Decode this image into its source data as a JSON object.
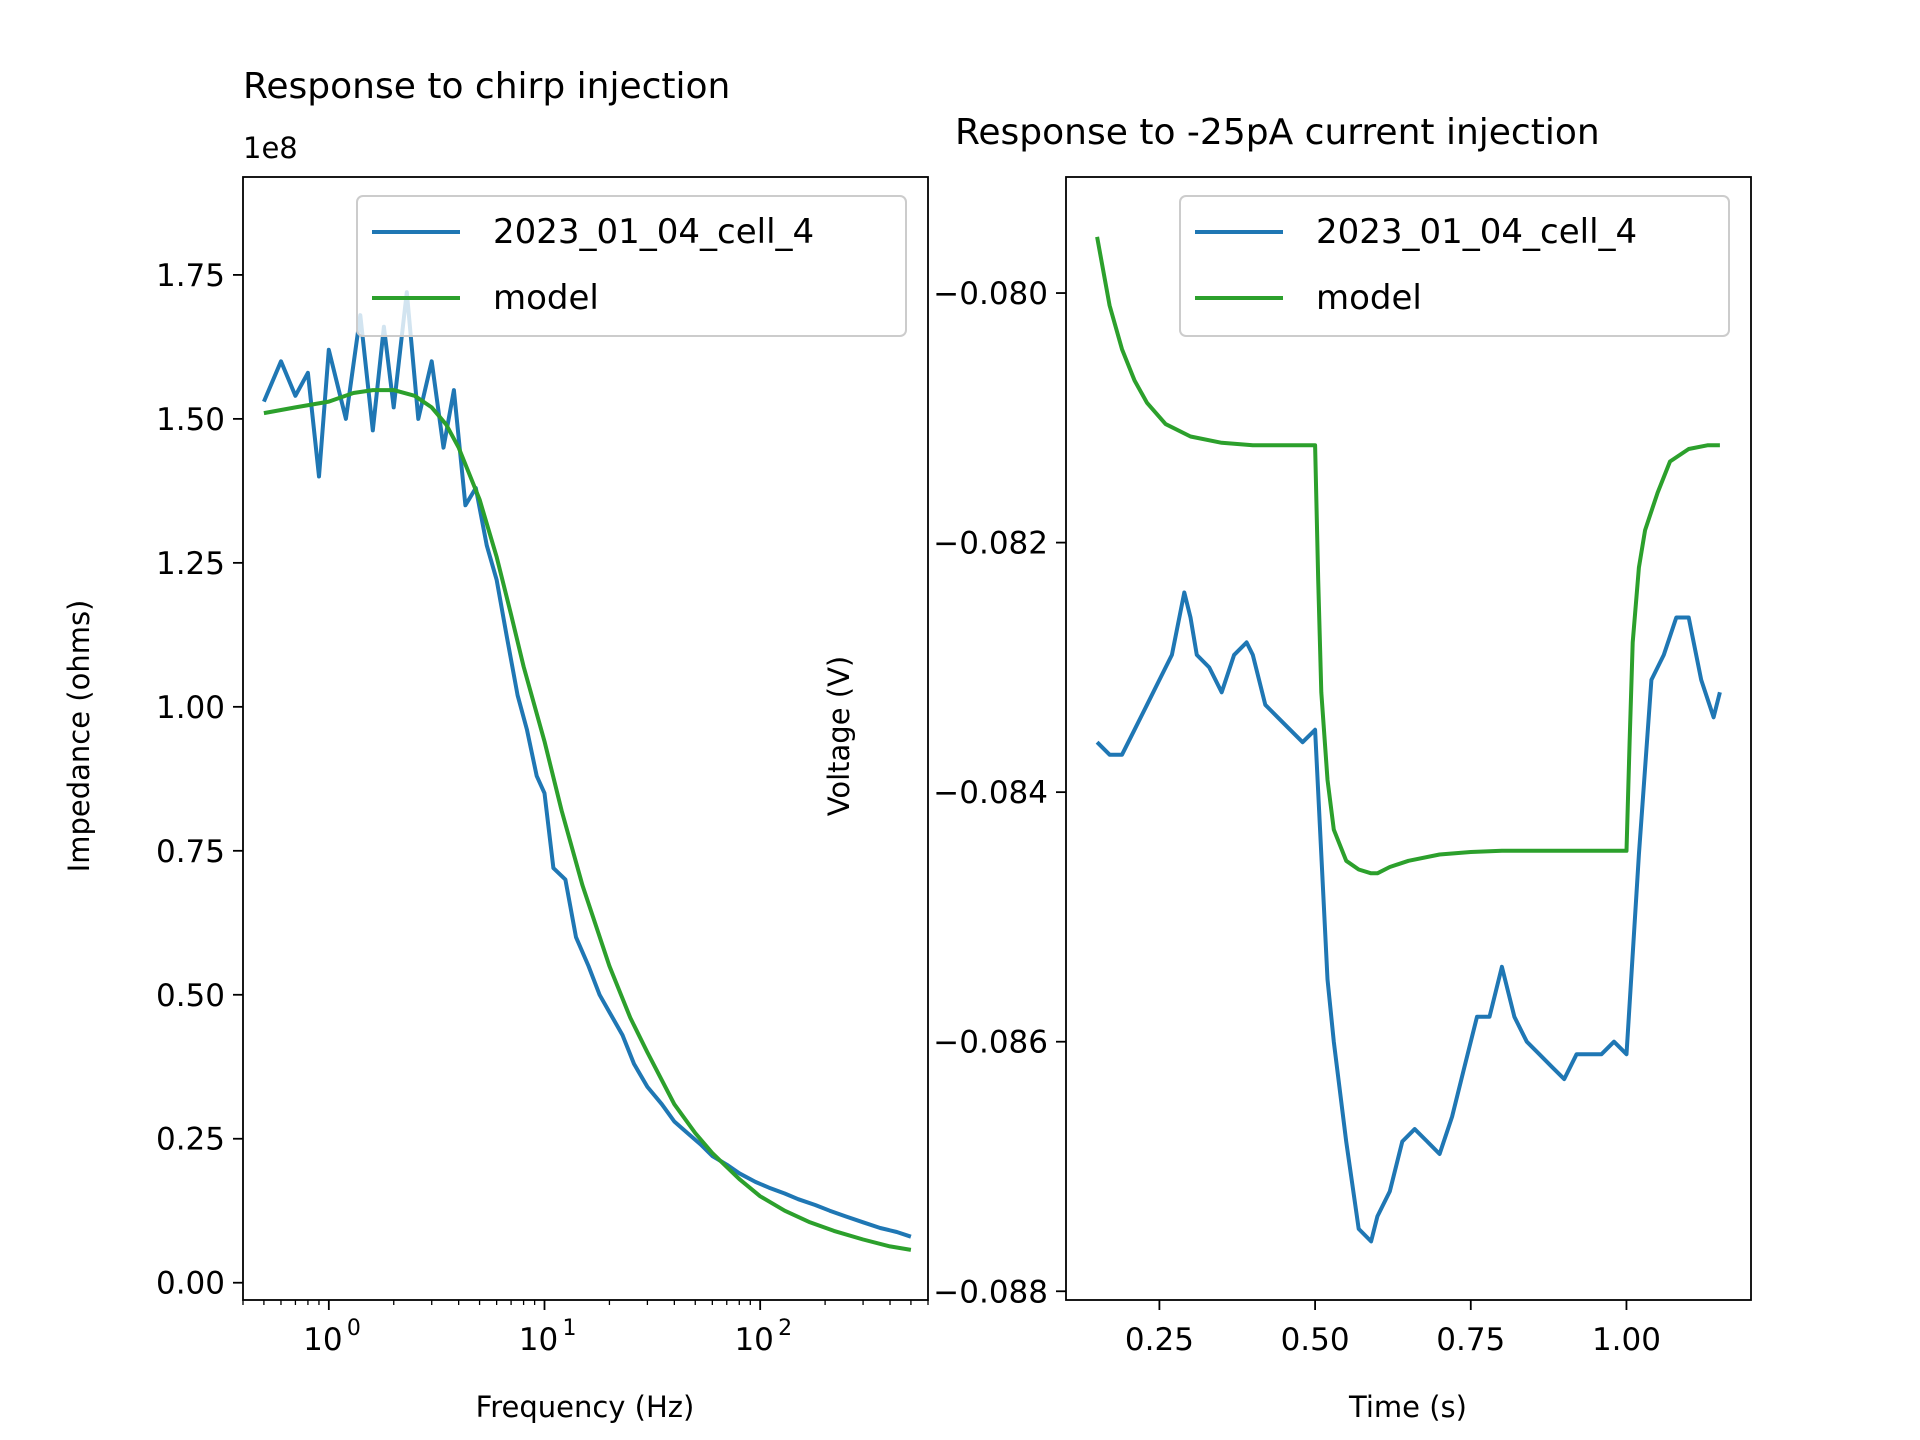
{
  "colors": {
    "data": "#1f77b4",
    "model": "#2ca02c",
    "axis": "#000000",
    "legend_border": "#cccccc"
  },
  "chart_data": [
    {
      "type": "line",
      "title": "Response to chirp injection",
      "xlabel": "Frequency (Hz)",
      "ylabel": "Impedance (ohms)",
      "y_offset_label": "1e8",
      "xscale": "log",
      "xlim": [
        0.4,
        600
      ],
      "ylim": [
        -0.03,
        1.92
      ],
      "x_ticks": [
        1,
        10,
        100
      ],
      "x_tick_labels": [
        "10",
        "10",
        "10"
      ],
      "x_tick_exponents": [
        "0",
        "1",
        "2"
      ],
      "y_ticks": [
        0.0,
        0.25,
        0.5,
        0.75,
        1.0,
        1.25,
        1.5,
        1.75
      ],
      "y_tick_labels": [
        "0.00",
        "0.25",
        "0.50",
        "0.75",
        "1.00",
        "1.25",
        "1.50",
        "1.75"
      ],
      "legend": {
        "position": "upper-right",
        "entries": [
          "2023_01_04_cell_4",
          "model"
        ]
      },
      "grid": false,
      "series": [
        {
          "name": "2023_01_04_cell_4",
          "color": "#1f77b4",
          "x": [
            0.5,
            0.6,
            0.7,
            0.8,
            0.9,
            1.0,
            1.2,
            1.4,
            1.6,
            1.8,
            2.0,
            2.3,
            2.6,
            3.0,
            3.4,
            3.8,
            4.3,
            4.8,
            5.4,
            6.0,
            6.7,
            7.5,
            8.3,
            9.2,
            10,
            11,
            12.5,
            14,
            16,
            18,
            20,
            23,
            26,
            30,
            35,
            40,
            46,
            53,
            60,
            70,
            80,
            95,
            110,
            130,
            150,
            180,
            210,
            250,
            300,
            360,
            430,
            500
          ],
          "y": [
            1.53,
            1.6,
            1.54,
            1.58,
            1.4,
            1.62,
            1.5,
            1.68,
            1.48,
            1.66,
            1.52,
            1.72,
            1.5,
            1.6,
            1.45,
            1.55,
            1.35,
            1.38,
            1.28,
            1.22,
            1.12,
            1.02,
            0.96,
            0.88,
            0.85,
            0.72,
            0.7,
            0.6,
            0.55,
            0.5,
            0.47,
            0.43,
            0.38,
            0.34,
            0.31,
            0.28,
            0.26,
            0.24,
            0.22,
            0.205,
            0.19,
            0.175,
            0.165,
            0.155,
            0.145,
            0.135,
            0.125,
            0.115,
            0.105,
            0.095,
            0.088,
            0.08
          ]
        },
        {
          "name": "model",
          "color": "#2ca02c",
          "x": [
            0.5,
            0.7,
            1.0,
            1.3,
            1.6,
            2.0,
            2.5,
            3.0,
            3.5,
            4.0,
            5.0,
            6.0,
            7.0,
            8.0,
            10,
            12,
            15,
            20,
            25,
            30,
            40,
            50,
            60,
            80,
            100,
            130,
            170,
            220,
            300,
            400,
            500
          ],
          "y": [
            1.51,
            1.52,
            1.53,
            1.545,
            1.55,
            1.55,
            1.54,
            1.52,
            1.49,
            1.45,
            1.36,
            1.26,
            1.16,
            1.07,
            0.94,
            0.82,
            0.69,
            0.55,
            0.46,
            0.4,
            0.31,
            0.26,
            0.225,
            0.18,
            0.15,
            0.125,
            0.105,
            0.09,
            0.075,
            0.063,
            0.057
          ]
        }
      ]
    },
    {
      "type": "line",
      "title": "Response to -25pA current injection",
      "xlabel": "Time (s)",
      "ylabel": "Voltage (V)",
      "xlim": [
        0.1,
        1.2
      ],
      "ylim": [
        -0.08807,
        -0.07907
      ],
      "x_ticks": [
        0.25,
        0.5,
        0.75,
        1.0
      ],
      "x_tick_labels": [
        "0.25",
        "0.50",
        "0.75",
        "1.00"
      ],
      "y_ticks": [
        -0.08,
        -0.082,
        -0.084,
        -0.086,
        -0.088
      ],
      "y_tick_labels": [
        "−0.080",
        "−0.082",
        "−0.084",
        "−0.086",
        "−0.088"
      ],
      "legend": {
        "position": "upper-right",
        "entries": [
          "2023_01_04_cell_4",
          "model"
        ]
      },
      "grid": false,
      "series": [
        {
          "name": "2023_01_04_cell_4",
          "color": "#1f77b4",
          "x": [
            0.15,
            0.17,
            0.19,
            0.21,
            0.23,
            0.25,
            0.27,
            0.29,
            0.3,
            0.31,
            0.33,
            0.35,
            0.37,
            0.39,
            0.4,
            0.42,
            0.44,
            0.46,
            0.48,
            0.5,
            0.51,
            0.52,
            0.53,
            0.55,
            0.57,
            0.59,
            0.6,
            0.62,
            0.64,
            0.66,
            0.68,
            0.7,
            0.72,
            0.74,
            0.76,
            0.78,
            0.8,
            0.82,
            0.84,
            0.86,
            0.88,
            0.9,
            0.92,
            0.94,
            0.96,
            0.98,
            1.0,
            1.02,
            1.04,
            1.06,
            1.08,
            1.1,
            1.12,
            1.14,
            1.15
          ],
          "y": [
            -0.0836,
            -0.0837,
            -0.0837,
            -0.0835,
            -0.0833,
            -0.0831,
            -0.0829,
            -0.0824,
            -0.0826,
            -0.0829,
            -0.083,
            -0.0832,
            -0.0829,
            -0.0828,
            -0.0829,
            -0.0833,
            -0.0834,
            -0.0835,
            -0.0836,
            -0.0835,
            -0.0845,
            -0.0855,
            -0.086,
            -0.0868,
            -0.0875,
            -0.0876,
            -0.0874,
            -0.0872,
            -0.0868,
            -0.0867,
            -0.0868,
            -0.0869,
            -0.0866,
            -0.0862,
            -0.0858,
            -0.0858,
            -0.0854,
            -0.0858,
            -0.086,
            -0.0861,
            -0.0862,
            -0.0863,
            -0.0861,
            -0.0861,
            -0.0861,
            -0.086,
            -0.0861,
            -0.0845,
            -0.0831,
            -0.0829,
            -0.0826,
            -0.0826,
            -0.0831,
            -0.0834,
            -0.0832
          ]
        },
        {
          "name": "model",
          "color": "#2ca02c",
          "x": [
            0.15,
            0.17,
            0.19,
            0.21,
            0.23,
            0.26,
            0.3,
            0.35,
            0.4,
            0.45,
            0.5,
            0.505,
            0.51,
            0.52,
            0.53,
            0.55,
            0.57,
            0.59,
            0.6,
            0.62,
            0.65,
            0.7,
            0.75,
            0.8,
            0.9,
            1.0,
            1.005,
            1.01,
            1.02,
            1.03,
            1.05,
            1.07,
            1.1,
            1.13,
            1.15
          ],
          "y": [
            -0.07955,
            -0.0801,
            -0.08045,
            -0.0807,
            -0.08088,
            -0.08105,
            -0.08115,
            -0.0812,
            -0.08122,
            -0.08122,
            -0.08122,
            -0.0823,
            -0.0832,
            -0.0839,
            -0.0843,
            -0.08455,
            -0.08462,
            -0.08465,
            -0.08465,
            -0.0846,
            -0.08455,
            -0.0845,
            -0.08448,
            -0.08447,
            -0.08447,
            -0.08447,
            -0.0836,
            -0.0828,
            -0.0822,
            -0.0819,
            -0.0816,
            -0.08135,
            -0.08125,
            -0.08122,
            -0.08122
          ]
        }
      ]
    }
  ]
}
